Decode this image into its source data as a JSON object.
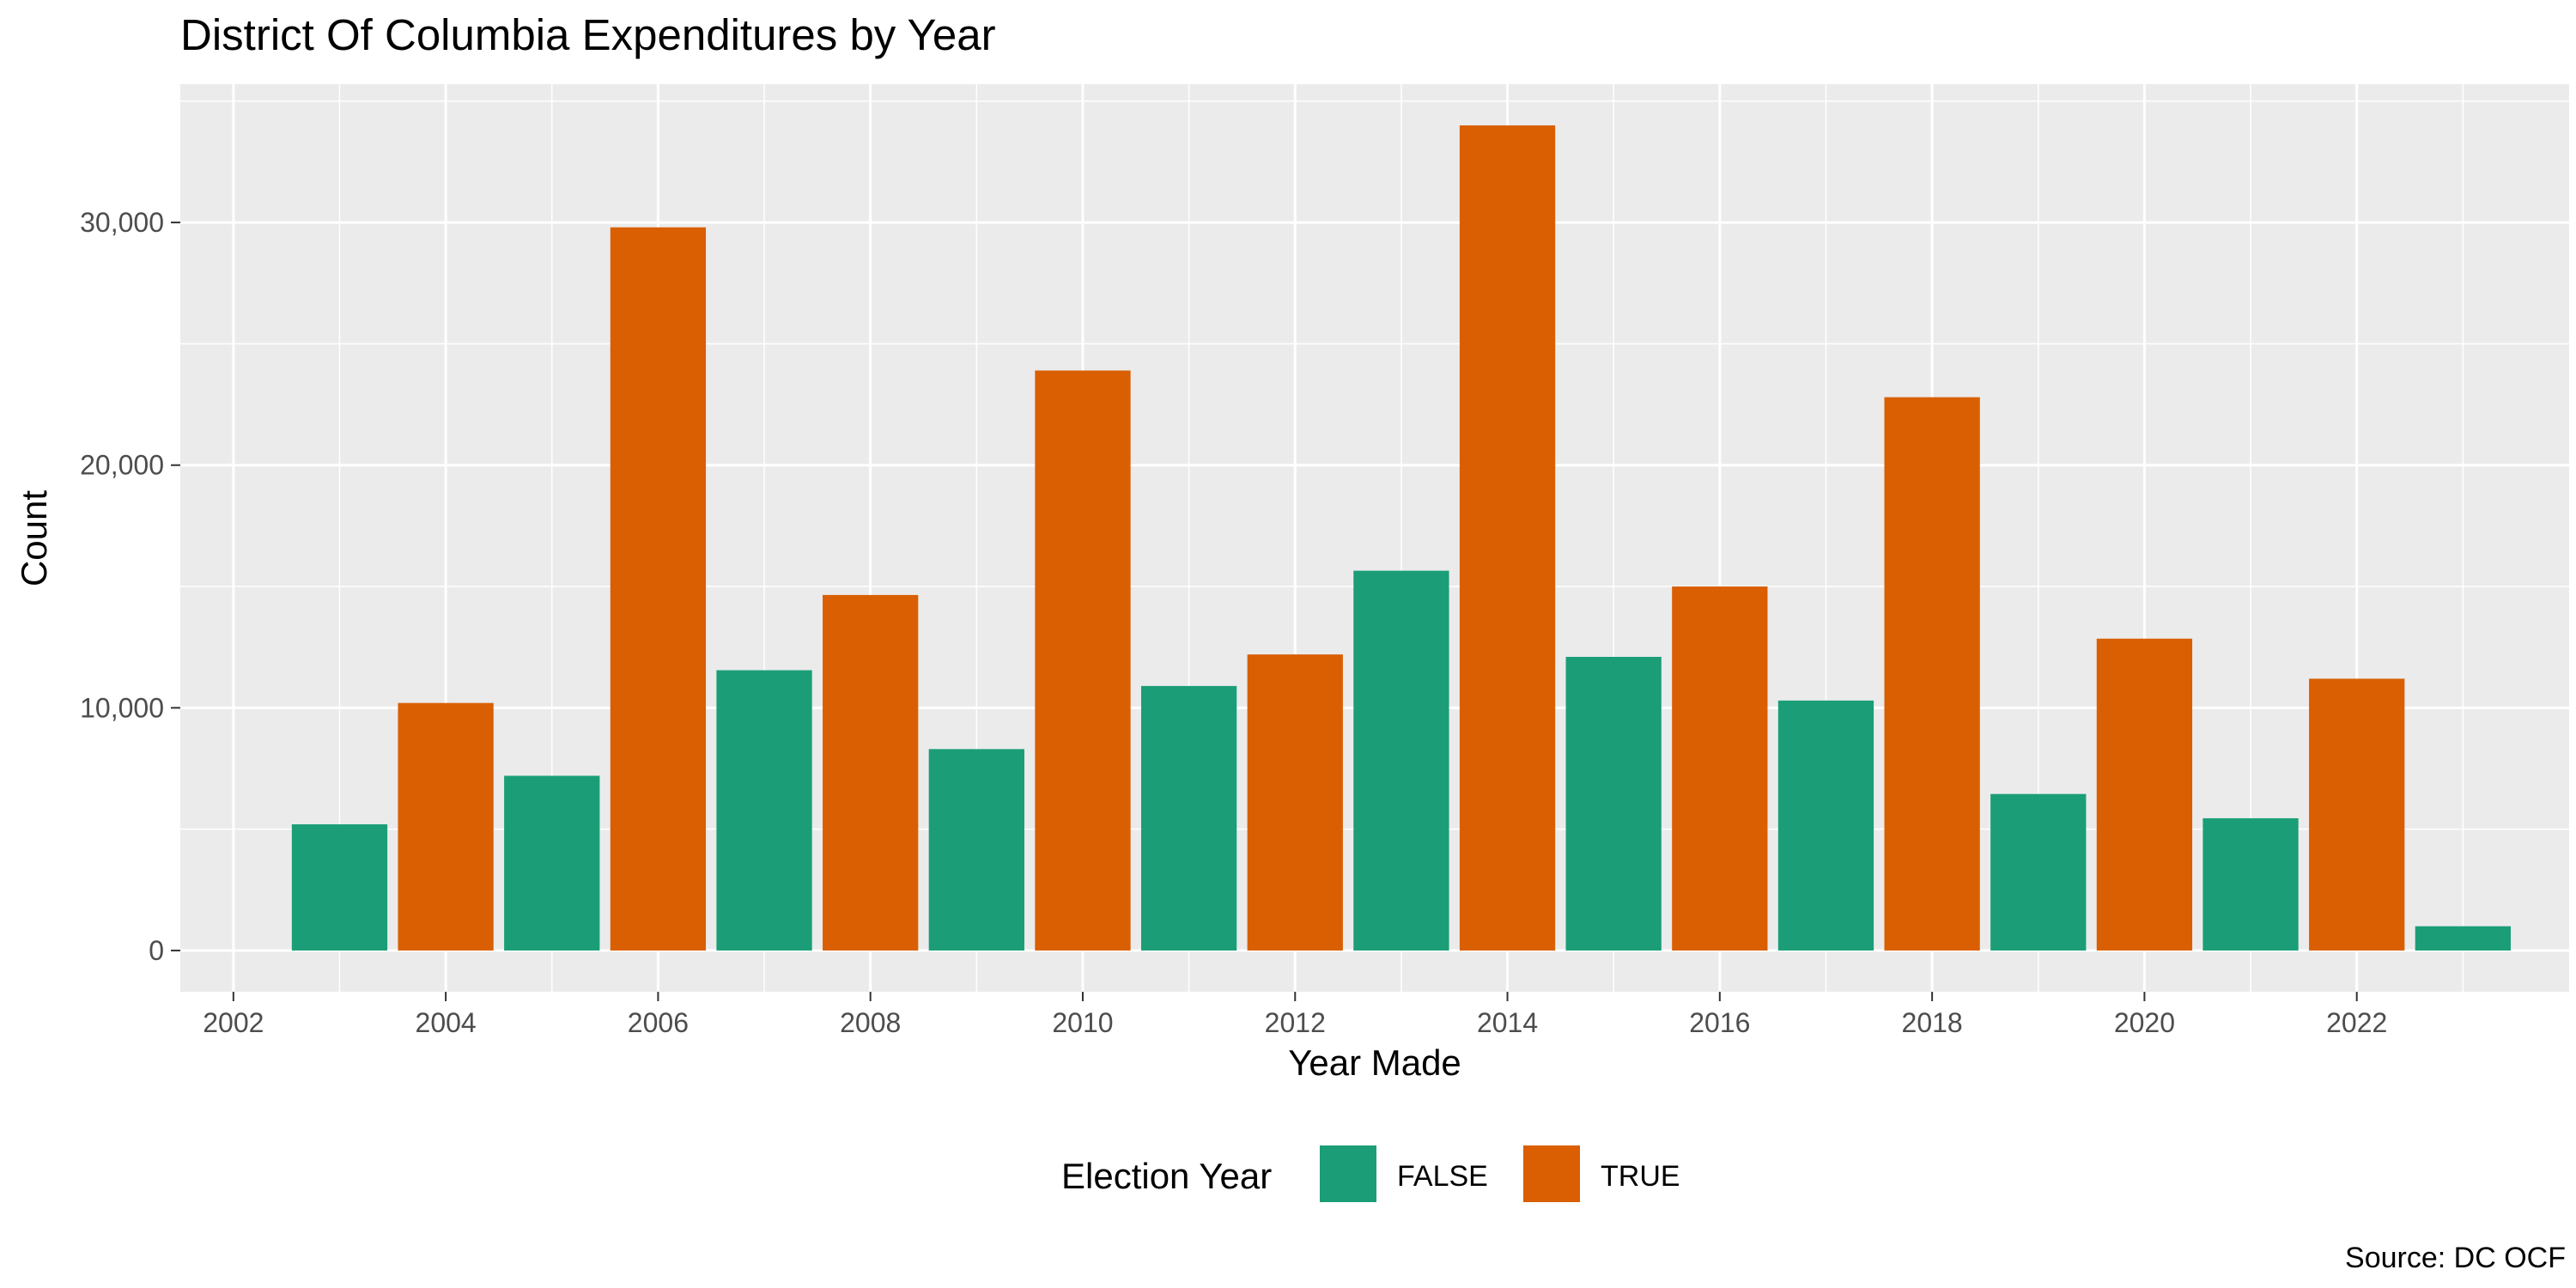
{
  "chart_data": {
    "type": "bar",
    "title": "District Of Columbia Expenditures by Year",
    "xlabel": "Year Made",
    "ylabel": "Count",
    "caption": "Source: DC OCF",
    "xlim": [
      2001.5,
      2024
    ],
    "ylim": [
      -1700,
      35700
    ],
    "x_ticks": [
      2002,
      2004,
      2006,
      2008,
      2010,
      2012,
      2014,
      2016,
      2018,
      2020,
      2022
    ],
    "x_tick_labels": [
      "2002",
      "2004",
      "2006",
      "2008",
      "2010",
      "2012",
      "2014",
      "2016",
      "2018",
      "2020",
      "2022"
    ],
    "y_ticks": [
      0,
      10000,
      20000,
      30000
    ],
    "y_tick_labels": [
      "0",
      "10,000",
      "20,000",
      "30,000"
    ],
    "grid": true,
    "legend": {
      "title": "Election Year",
      "position": "bottom",
      "entries": [
        {
          "label": "FALSE",
          "color": "#1B9E77"
        },
        {
          "label": "TRUE",
          "color": "#D95F02"
        }
      ]
    },
    "colors": {
      "FALSE": "#1B9E77",
      "TRUE": "#D95F02",
      "panel": "#EBEBEB",
      "grid": "#FFFFFF"
    },
    "bars": [
      {
        "x": 2003,
        "y": 5200,
        "election_year": "FALSE"
      },
      {
        "x": 2004,
        "y": 10200,
        "election_year": "TRUE"
      },
      {
        "x": 2005,
        "y": 7200,
        "election_year": "FALSE"
      },
      {
        "x": 2006,
        "y": 29800,
        "election_year": "TRUE"
      },
      {
        "x": 2007,
        "y": 11550,
        "election_year": "FALSE"
      },
      {
        "x": 2008,
        "y": 14650,
        "election_year": "TRUE"
      },
      {
        "x": 2009,
        "y": 8300,
        "election_year": "FALSE"
      },
      {
        "x": 2010,
        "y": 23900,
        "election_year": "TRUE"
      },
      {
        "x": 2011,
        "y": 10900,
        "election_year": "FALSE"
      },
      {
        "x": 2012,
        "y": 12200,
        "election_year": "TRUE"
      },
      {
        "x": 2013,
        "y": 15650,
        "election_year": "FALSE"
      },
      {
        "x": 2014,
        "y": 34000,
        "election_year": "TRUE"
      },
      {
        "x": 2015,
        "y": 12100,
        "election_year": "FALSE"
      },
      {
        "x": 2016,
        "y": 15000,
        "election_year": "TRUE"
      },
      {
        "x": 2017,
        "y": 10300,
        "election_year": "FALSE"
      },
      {
        "x": 2018,
        "y": 22800,
        "election_year": "TRUE"
      },
      {
        "x": 2019,
        "y": 6450,
        "election_year": "FALSE"
      },
      {
        "x": 2020,
        "y": 12850,
        "election_year": "TRUE"
      },
      {
        "x": 2021,
        "y": 5450,
        "election_year": "FALSE"
      },
      {
        "x": 2022,
        "y": 11200,
        "election_year": "TRUE"
      },
      {
        "x": 2023,
        "y": 1000,
        "election_year": "FALSE"
      }
    ]
  }
}
